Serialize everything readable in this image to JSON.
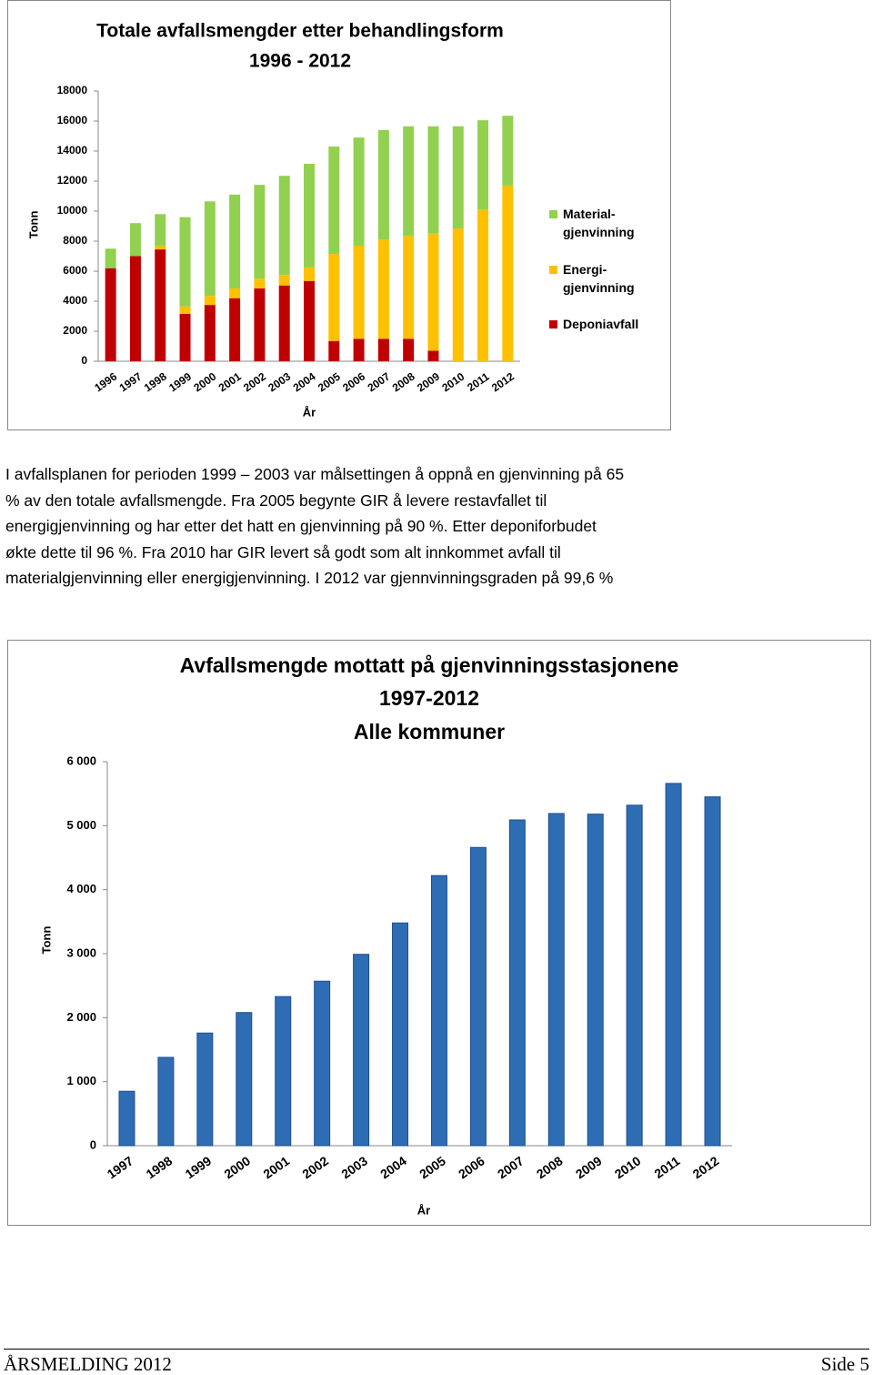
{
  "chart_data": [
    {
      "type": "stacked_bar",
      "title": [
        "Totale avfallsmengder etter behandlingsform",
        "1996 - 2012"
      ],
      "x_label": "År",
      "y_label": "Tonn",
      "categories": [
        "1996",
        "1997",
        "1998",
        "1999",
        "2000",
        "2001",
        "2002",
        "2003",
        "2004",
        "2005",
        "2006",
        "2007",
        "2008",
        "2009",
        "2010",
        "2011",
        "2012"
      ],
      "series": [
        {
          "name": "Deponiavfall",
          "color": "#c00000",
          "values": [
            6200,
            7000,
            7450,
            3150,
            3750,
            4200,
            4850,
            5050,
            5350,
            1350,
            1500,
            1500,
            1500,
            700,
            0,
            0,
            0
          ]
        },
        {
          "name": "Energi-\ngjenvinning",
          "color": "#ffc000",
          "values": [
            0,
            0,
            250,
            500,
            600,
            650,
            650,
            700,
            900,
            5800,
            6200,
            6600,
            6850,
            7800,
            8850,
            10100,
            11700
          ]
        },
        {
          "name": "Material-\ngjenvinning",
          "color": "#92d050",
          "values": [
            1300,
            2200,
            2100,
            5950,
            6300,
            6250,
            6250,
            6600,
            6900,
            7150,
            7200,
            7300,
            7300,
            7150,
            6800,
            5950,
            4650
          ]
        }
      ],
      "ylim": [
        0,
        18000
      ],
      "yticks": [
        0,
        2000,
        4000,
        6000,
        8000,
        10000,
        12000,
        14000,
        16000,
        18000
      ],
      "grid": false,
      "legend": "right"
    },
    {
      "type": "bar",
      "title": [
        "Avfallsmengde mottatt på gjenvinningsstasjonene",
        "1997-2012",
        "Alle kommuner"
      ],
      "x_label": "År",
      "y_label": "Tonn",
      "categories": [
        "1997",
        "1998",
        "1999",
        "2000",
        "2001",
        "2002",
        "2003",
        "2004",
        "2005",
        "2006",
        "2007",
        "2008",
        "2009",
        "2010",
        "2011",
        "2012"
      ],
      "values": [
        850,
        1380,
        1760,
        2080,
        2330,
        2570,
        2990,
        3480,
        4220,
        4660,
        5090,
        5190,
        5180,
        5320,
        5660,
        5450
      ],
      "color": "#2e6db4",
      "ylim": [
        0,
        6000
      ],
      "yticks": [
        0,
        {
          "value": 1000,
          "label": "1 000"
        },
        {
          "value": 2000,
          "label": "2 000"
        },
        {
          "value": 3000,
          "label": "3 000"
        },
        {
          "value": 4000,
          "label": "4 000"
        },
        {
          "value": 5000,
          "label": "5 000"
        },
        {
          "value": 6000,
          "label": "6 000"
        }
      ],
      "grid": false
    }
  ],
  "paragraph": [
    "I avfallsplanen for perioden 1999 – 2003 var målsettingen å oppnå en gjenvinning på 65",
    "% av den totale avfallsmengde. Fra 2005 begynte GIR å levere restavfallet til",
    "energigjenvinning og har etter det hatt en gjenvinning på 90 %. Etter deponiforbudet",
    "økte dette til 96 %. Fra 2010 har GIR levert så godt som alt innkommet avfall til",
    "materialgjenvinning eller energigjenvinning. I 2012 var gjennvinningsgraden på 99,6 %"
  ],
  "footer": {
    "left": "ÅRSMELDING 2012",
    "right": "Side 5"
  }
}
